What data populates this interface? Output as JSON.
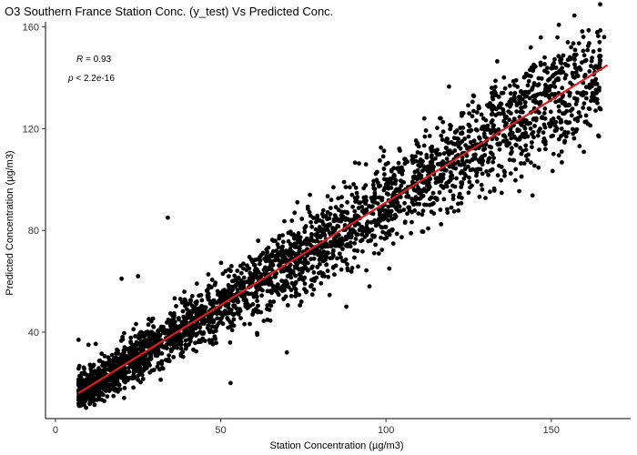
{
  "chart_data": {
    "type": "scatter",
    "title": "O3 Southern France Station Conc. (y_test) Vs Predicted Conc.",
    "xlabel": "Station Concentration (µg/m3)",
    "ylabel": "Predicted Concentration (µg/m3)",
    "xlim": [
      -3,
      174
    ],
    "ylim": [
      6,
      162
    ],
    "x_ticks": [
      0,
      50,
      100,
      150
    ],
    "y_ticks": [
      40,
      80,
      120,
      160
    ],
    "grid": false,
    "annotation": {
      "r_label": "R",
      "r_value": "= 0.93",
      "p_label": "p",
      "p_value": "< 2.2e-16"
    },
    "fit_line": {
      "x": [
        7,
        167
      ],
      "y": [
        16,
        145
      ],
      "color": "#e31a1c"
    },
    "point_color": "#000000",
    "n_points": 3200,
    "outliers": [
      {
        "x": 155,
        "y": 154
      },
      {
        "x": 156,
        "y": 152
      },
      {
        "x": 166,
        "y": 156
      },
      {
        "x": 157,
        "y": 149
      },
      {
        "x": 148,
        "y": 148
      },
      {
        "x": 144,
        "y": 144
      },
      {
        "x": 163,
        "y": 131
      },
      {
        "x": 154,
        "y": 126
      },
      {
        "x": 150,
        "y": 117
      },
      {
        "x": 139,
        "y": 134
      },
      {
        "x": 135,
        "y": 134
      },
      {
        "x": 132,
        "y": 136
      },
      {
        "x": 128,
        "y": 128
      },
      {
        "x": 70,
        "y": 32
      },
      {
        "x": 88,
        "y": 50
      },
      {
        "x": 34,
        "y": 85
      },
      {
        "x": 7,
        "y": 37
      },
      {
        "x": 10,
        "y": 35
      },
      {
        "x": 20,
        "y": 61
      },
      {
        "x": 25,
        "y": 62
      },
      {
        "x": 53,
        "y": 20
      },
      {
        "x": 101,
        "y": 65
      },
      {
        "x": 95,
        "y": 58
      },
      {
        "x": 77,
        "y": 94
      }
    ]
  }
}
